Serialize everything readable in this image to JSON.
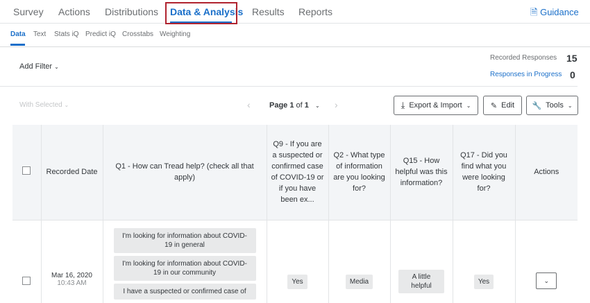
{
  "topnav": {
    "tabs": [
      "Survey",
      "Actions",
      "Distributions",
      "Data & Analysis",
      "Results",
      "Reports"
    ],
    "guidance": "Guidance"
  },
  "subnav": {
    "tabs": [
      "Data",
      "Text",
      "Stats iQ",
      "Predict iQ",
      "Crosstabs",
      "Weighting"
    ]
  },
  "filter": {
    "add_filter": "Add Filter"
  },
  "stats": {
    "recorded_label": "Recorded Responses",
    "recorded_value": "15",
    "progress_label": "Responses in Progress",
    "progress_value": "0"
  },
  "toolbar": {
    "with_selected": "With Selected",
    "page_prefix": "Page",
    "page_current": "1",
    "page_of": "of",
    "page_total": "1",
    "export": "Export & Import",
    "edit": "Edit",
    "tools": "Tools"
  },
  "table": {
    "headers": [
      "Recorded Date",
      "Q1 - How can Tread help? (check all that apply)",
      "Q9 - If you are a suspected or confirmed case of COVID-19 or if you have been ex...",
      "Q2 - What type of information are you looking for?",
      "Q15 - How helpful was this information?",
      "Q17 - Did you find what you were looking for?",
      "Actions"
    ],
    "rows": [
      {
        "date": "Mar 16, 2020",
        "time": "10:43 AM",
        "q1": [
          "I'm looking for information about COVID-19 in general",
          "I'm looking for information about COVID-19 in our community",
          "I have a suspected or confirmed case of"
        ],
        "q9": "Yes",
        "q2": "Media",
        "q15": "A little helpful",
        "q17": "Yes"
      }
    ]
  },
  "colors": {
    "accent": "#1a6fc9",
    "highlight": "#b0232f"
  }
}
